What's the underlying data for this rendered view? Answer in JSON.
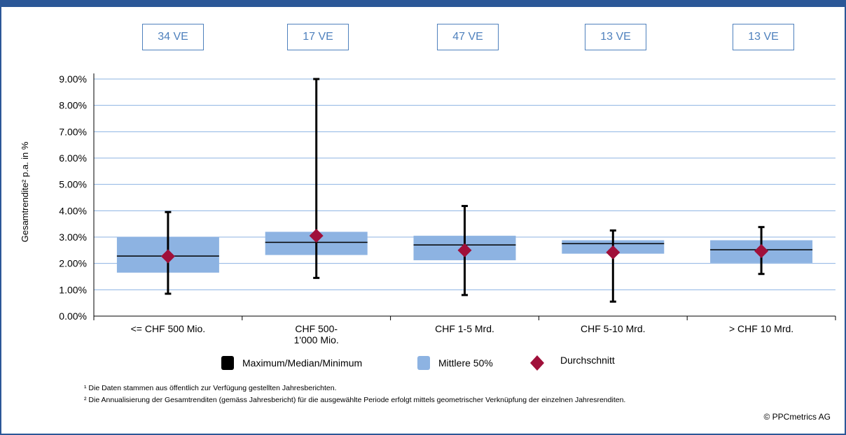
{
  "colors": {
    "frame": "#2b5797",
    "gridline": "#8db3e2",
    "box": "#8db3e2",
    "whisker": "#000000",
    "diamond": "#a0103a",
    "count_text": "#4f81bd"
  },
  "counts": [
    "34 VE",
    "17 VE",
    "47 VE",
    "13 VE",
    "13 VE"
  ],
  "chart_data": {
    "type": "boxplot",
    "ylabel": "Gesamtrendite² p.a. in %",
    "ylim": [
      0,
      9
    ],
    "y_ticks": [
      "0.00%",
      "1.00%",
      "2.00%",
      "3.00%",
      "4.00%",
      "5.00%",
      "6.00%",
      "7.00%",
      "8.00%",
      "9.00%"
    ],
    "grid": true,
    "categories": [
      [
        "<= CHF 500 Mio."
      ],
      [
        "CHF 500-",
        "1'000 Mio."
      ],
      [
        "CHF 1-5 Mrd."
      ],
      [
        "CHF 5-10 Mrd."
      ],
      [
        "> CHF 10 Mrd."
      ]
    ],
    "series": [
      {
        "name": "Maximum/Median/Minimum",
        "min": [
          0.85,
          1.45,
          0.8,
          0.55,
          1.6
        ],
        "median": [
          2.28,
          2.8,
          2.7,
          2.75,
          2.52
        ],
        "max": [
          3.95,
          9.0,
          4.18,
          3.25,
          3.38
        ]
      },
      {
        "name": "Mittlere 50%",
        "q1": [
          1.65,
          2.32,
          2.12,
          2.37,
          2.02
        ],
        "q3": [
          3.0,
          3.2,
          3.05,
          2.88,
          2.88
        ]
      },
      {
        "name": "Durchschnitt",
        "values": [
          2.27,
          3.05,
          2.5,
          2.42,
          2.47
        ]
      }
    ],
    "legend": "bottom"
  },
  "footnotes": [
    "¹ Die Daten stammen aus öffentlich zur Verfügung gestellten Jahresberichten.",
    "² Die Annualisierung der Gesamtrenditen (gemäss Jahresbericht) für die ausgewählte Periode erfolgt mittels geometrischer Verknüpfung der einzelnen Jahresrenditen."
  ],
  "copyright": "© PPCmetrics AG"
}
